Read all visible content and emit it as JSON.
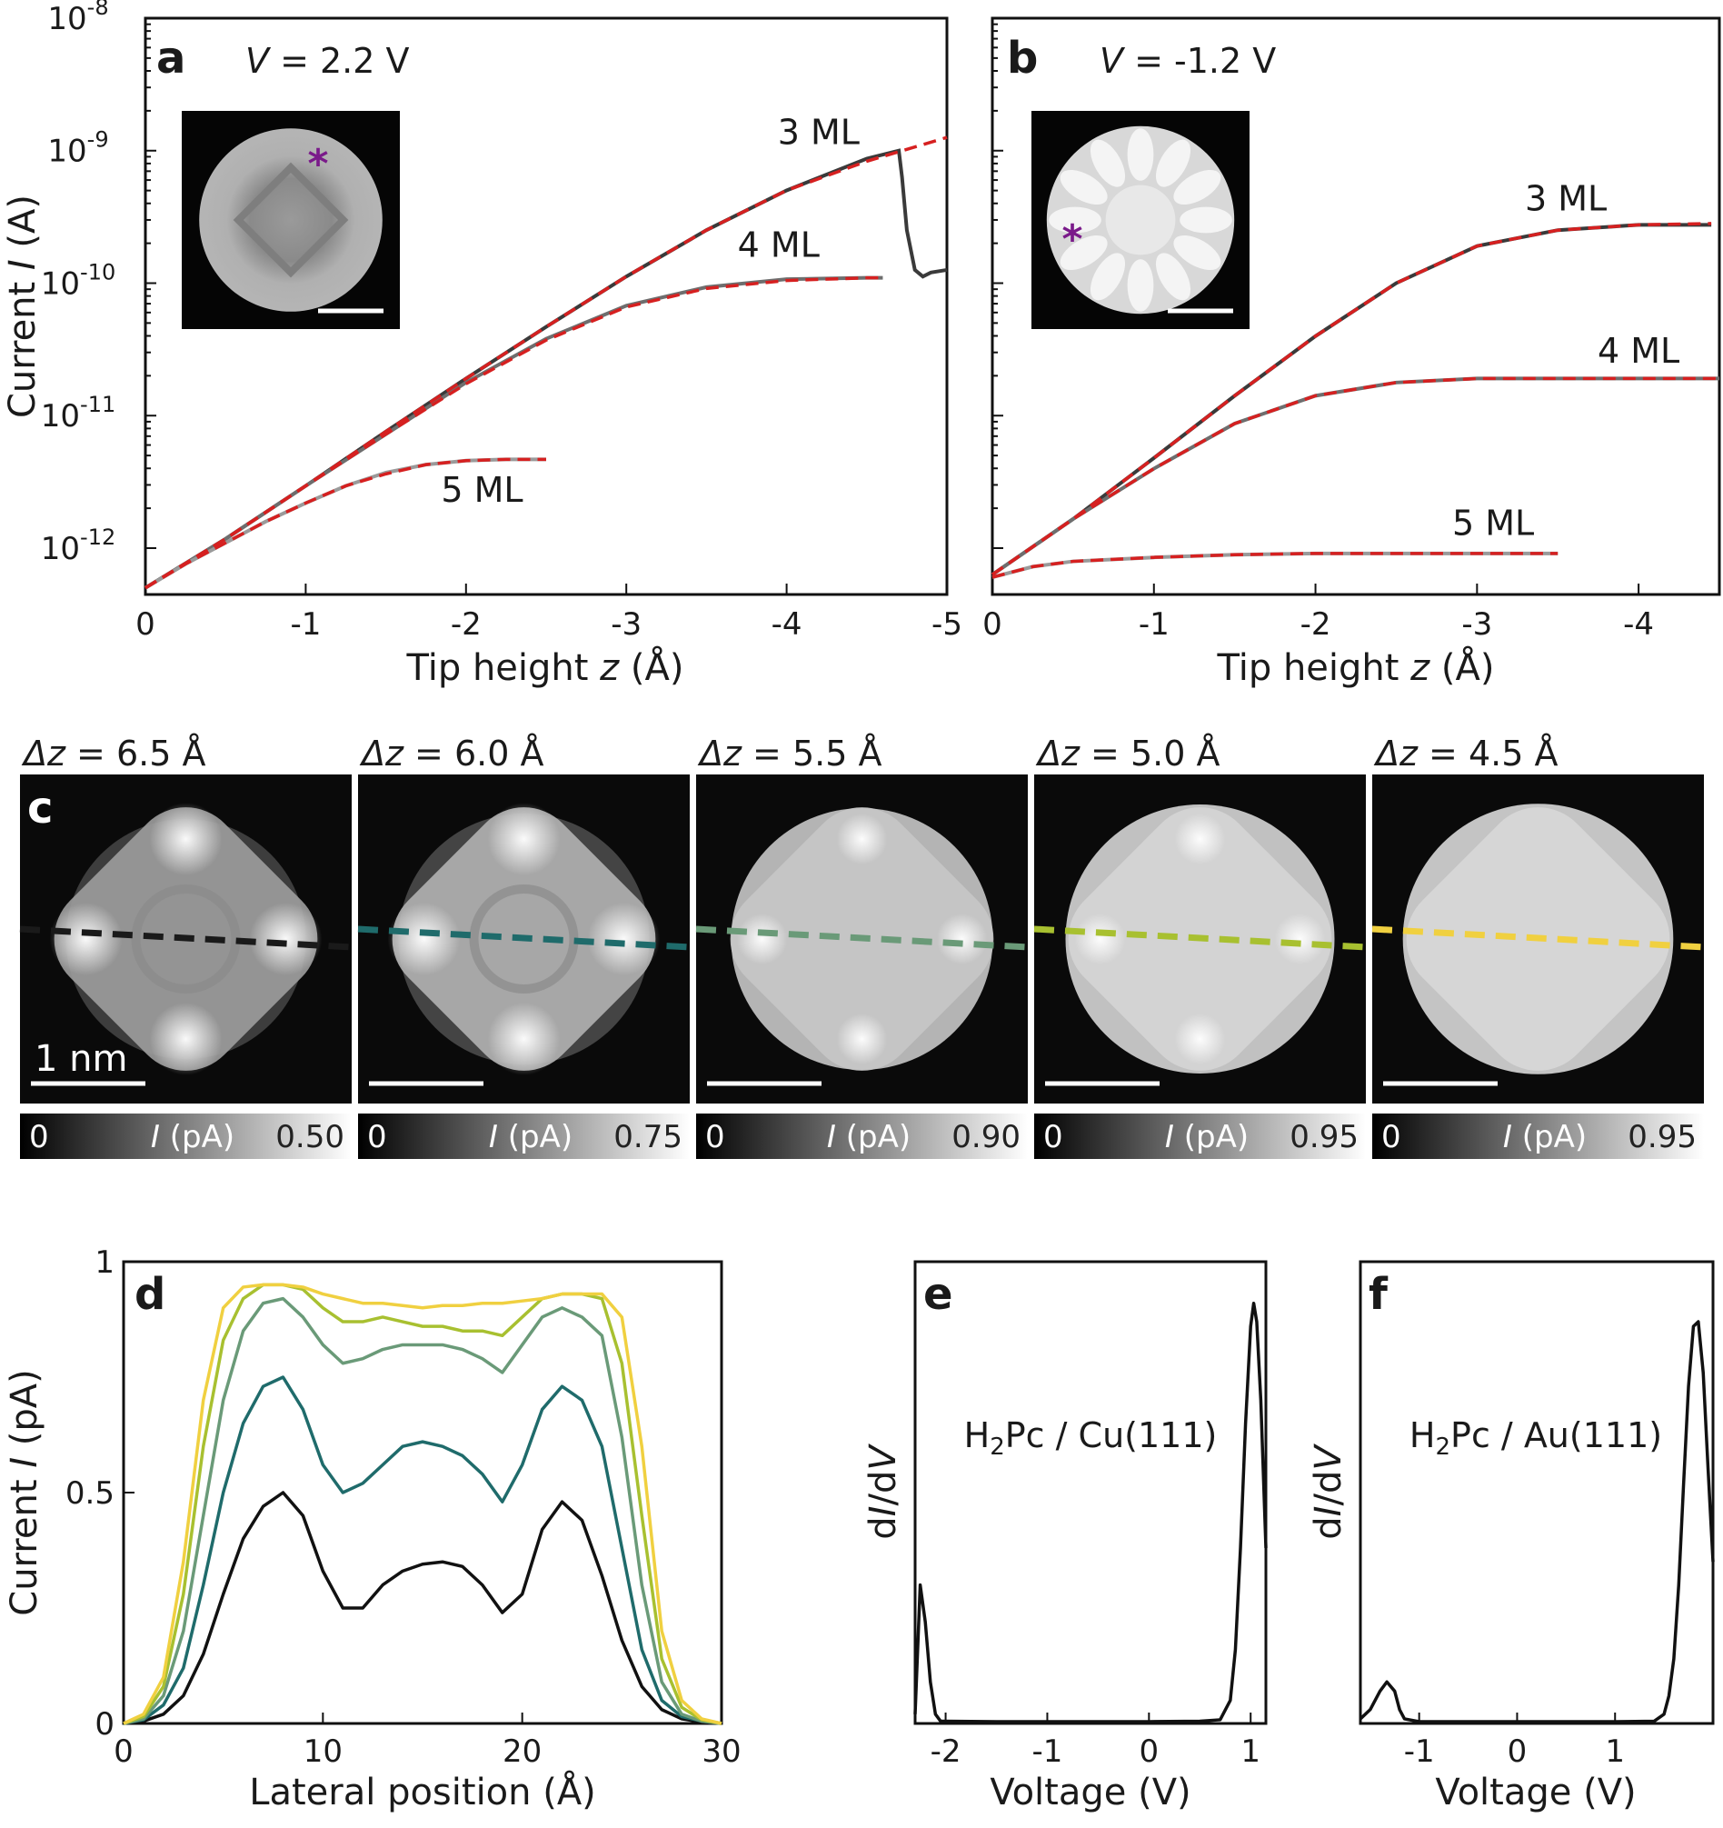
{
  "chart_data": [
    {
      "id": "a",
      "type": "line",
      "panel_label": "a",
      "bias_prefix": "V",
      "bias_value": " = 2.2 V",
      "xlabel_prefix": "Tip height ",
      "xlabel_var": "z",
      "xlabel_suffix": " (Å)",
      "ylabel_prefix": "Current ",
      "ylabel_var": "I",
      "ylabel_suffix": " (A)",
      "yscale": "log",
      "xlim": [
        0,
        -5
      ],
      "ylim_exp": [
        -12.35,
        -8
      ],
      "xticks": [
        0,
        -1,
        -2,
        -3,
        -4,
        -5
      ],
      "xtick_labels": [
        "0",
        "-1",
        "-2",
        "-3",
        "-4",
        "-5"
      ],
      "yticks_exp": [
        -12,
        -11,
        -10,
        -9,
        -8
      ],
      "ytick_base": "10",
      "ytick_exps": [
        "-12",
        "-11",
        "-10",
        "-9",
        "-8"
      ],
      "series": [
        {
          "name": "3 ML",
          "color": "#3a3a3a",
          "x": [
            0,
            -0.5,
            -1,
            -1.5,
            -2,
            -2.5,
            -3,
            -3.5,
            -4,
            -4.5,
            -4.7,
            -4.72,
            -4.75,
            -4.8,
            -4.85,
            -4.9,
            -5.0
          ],
          "y_exp": [
            -12.3,
            -11.93,
            -11.53,
            -11.12,
            -10.72,
            -10.33,
            -9.95,
            -9.6,
            -9.3,
            -9.06,
            -9.0,
            -9.2,
            -9.6,
            -9.9,
            -9.95,
            -9.92,
            -9.9
          ]
        },
        {
          "name": "4 ML",
          "color": "#6e6e6e",
          "x": [
            0,
            -0.5,
            -1,
            -1.5,
            -2,
            -2.5,
            -3,
            -3.5,
            -4,
            -4.5,
            -4.6
          ],
          "y_exp": [
            -12.3,
            -11.93,
            -11.53,
            -11.14,
            -10.75,
            -10.42,
            -10.17,
            -10.03,
            -9.97,
            -9.96,
            -9.96
          ]
        },
        {
          "name": "5 ML",
          "color": "#9a9a9a",
          "x": [
            0,
            -0.25,
            -0.5,
            -0.75,
            -1,
            -1.25,
            -1.5,
            -1.75,
            -2,
            -2.25,
            -2.5
          ],
          "y_exp": [
            -12.3,
            -12.12,
            -11.96,
            -11.8,
            -11.66,
            -11.53,
            -11.43,
            -11.37,
            -11.34,
            -11.33,
            -11.33
          ]
        }
      ],
      "fits": [
        {
          "color": "#d62020",
          "x": [
            0,
            -0.5,
            -1,
            -1.5,
            -2,
            -2.5,
            -3,
            -3.5,
            -4,
            -4.5,
            -5.0
          ],
          "y_exp": [
            -12.3,
            -11.93,
            -11.53,
            -11.12,
            -10.72,
            -10.33,
            -9.95,
            -9.6,
            -9.3,
            -9.08,
            -8.9
          ]
        },
        {
          "color": "#d62020",
          "x": [
            0,
            -0.5,
            -1,
            -1.5,
            -2,
            -2.5,
            -3,
            -3.5,
            -4,
            -4.5,
            -4.6
          ],
          "y_exp": [
            -12.3,
            -11.93,
            -11.53,
            -11.14,
            -10.76,
            -10.43,
            -10.18,
            -10.04,
            -9.98,
            -9.96,
            -9.96
          ]
        },
        {
          "color": "#d62020",
          "x": [
            0,
            -0.25,
            -0.5,
            -0.75,
            -1,
            -1.25,
            -1.5,
            -1.75,
            -2,
            -2.25,
            -2.5
          ],
          "y_exp": [
            -12.3,
            -12.12,
            -11.96,
            -11.8,
            -11.66,
            -11.53,
            -11.44,
            -11.37,
            -11.34,
            -11.33,
            -11.33
          ]
        }
      ],
      "labels": [
        {
          "text": "3 ML",
          "x": -4.2,
          "y_exp": -8.95
        },
        {
          "text": "4 ML",
          "x": -3.95,
          "y_exp": -9.8
        },
        {
          "text": "5 ML",
          "x": -2.1,
          "y_exp": -11.65
        }
      ],
      "inset": {
        "has_asterisk": true,
        "asterisk_color": "#7a1a8a",
        "pattern": "ring"
      }
    },
    {
      "id": "b",
      "type": "line",
      "panel_label": "b",
      "bias_prefix": "V",
      "bias_value": " = -1.2 V",
      "xlabel_prefix": "Tip height ",
      "xlabel_var": "z",
      "xlabel_suffix": " (Å)",
      "yscale": "log",
      "xlim": [
        0,
        -4.5
      ],
      "ylim_exp": [
        -12.35,
        -8
      ],
      "xticks": [
        0,
        -1,
        -2,
        -3,
        -4
      ],
      "xtick_labels": [
        "0",
        "-1",
        "-2",
        "-3",
        "-4"
      ],
      "yticks_exp": [
        -12,
        -11,
        -10,
        -9
      ],
      "series": [
        {
          "name": "3 ML",
          "color": "#3a3a3a",
          "x": [
            0,
            -0.5,
            -1,
            -1.5,
            -2,
            -2.5,
            -3,
            -3.5,
            -4,
            -4.45
          ],
          "y_exp": [
            -12.2,
            -11.78,
            -11.32,
            -10.85,
            -10.4,
            -10.0,
            -9.72,
            -9.6,
            -9.56,
            -9.56
          ]
        },
        {
          "name": "4 ML",
          "color": "#6e6e6e",
          "x": [
            0,
            -0.5,
            -1,
            -1.5,
            -2,
            -2.5,
            -3,
            -3.5,
            -4,
            -4.5
          ],
          "y_exp": [
            -12.2,
            -11.78,
            -11.4,
            -11.06,
            -10.85,
            -10.75,
            -10.72,
            -10.72,
            -10.72,
            -10.72
          ]
        },
        {
          "name": "5 ML",
          "color": "#9a9a9a",
          "x": [
            0,
            -0.25,
            -0.5,
            -1,
            -1.5,
            -2,
            -2.5,
            -3,
            -3.5
          ],
          "y_exp": [
            -12.22,
            -12.14,
            -12.1,
            -12.07,
            -12.05,
            -12.04,
            -12.04,
            -12.04,
            -12.04
          ]
        }
      ],
      "fits": [
        {
          "color": "#d62020",
          "x": [
            0,
            -0.5,
            -1,
            -1.5,
            -2,
            -2.5,
            -3,
            -3.5,
            -4,
            -4.45
          ],
          "y_exp": [
            -12.2,
            -11.78,
            -11.32,
            -10.85,
            -10.4,
            -10.0,
            -9.72,
            -9.6,
            -9.56,
            -9.55
          ]
        },
        {
          "color": "#d62020",
          "x": [
            0,
            -0.5,
            -1,
            -1.5,
            -2,
            -2.5,
            -3,
            -3.5,
            -4,
            -4.5
          ],
          "y_exp": [
            -12.2,
            -11.78,
            -11.4,
            -11.06,
            -10.85,
            -10.75,
            -10.72,
            -10.72,
            -10.72,
            -10.72
          ]
        },
        {
          "color": "#d62020",
          "x": [
            0,
            -0.25,
            -0.5,
            -1,
            -1.5,
            -2,
            -2.5,
            -3,
            -3.5
          ],
          "y_exp": [
            -12.22,
            -12.14,
            -12.1,
            -12.07,
            -12.05,
            -12.04,
            -12.04,
            -12.04,
            -12.04
          ]
        }
      ],
      "labels": [
        {
          "text": "3 ML",
          "x": -3.55,
          "y_exp": -9.45
        },
        {
          "text": "4 ML",
          "x": -4.0,
          "y_exp": -10.6
        },
        {
          "text": "5 ML",
          "x": -3.1,
          "y_exp": -11.9
        }
      ],
      "inset": {
        "has_asterisk": true,
        "asterisk_color": "#7a1a8a",
        "pattern": "petals"
      }
    },
    {
      "id": "c",
      "type": "heatmap",
      "panel_label": "c",
      "scale_bar_label": "1 nm",
      "cbar_var": "I",
      "cbar_unit": " (pA)",
      "cbar_min": "0",
      "dz_prefix": "Δz",
      "frames": [
        {
          "dz": " = 6.5 Å",
          "cbar_max": "0.50",
          "line_color": "#1a1a1a",
          "pattern": "lobes",
          "brightness": 0.55
        },
        {
          "dz": " = 6.0 Å",
          "cbar_max": "0.75",
          "line_color": "#1f6b6b",
          "pattern": "lobes",
          "brightness": 0.7
        },
        {
          "dz": " = 5.5 Å",
          "cbar_max": "0.90",
          "line_color": "#6a9a78",
          "pattern": "mixed",
          "brightness": 0.85
        },
        {
          "dz": " = 5.0 Å",
          "cbar_max": "0.95",
          "line_color": "#a8c030",
          "pattern": "petals",
          "brightness": 0.95
        },
        {
          "dz": " = 4.5 Å",
          "cbar_max": "0.95",
          "line_color": "#f0d040",
          "pattern": "disc",
          "brightness": 0.97
        }
      ]
    },
    {
      "id": "d",
      "type": "line",
      "panel_label": "d",
      "xlabel": "Lateral position (Å)",
      "ylabel_prefix": "Current ",
      "ylabel_var": "I",
      "ylabel_suffix": " (pA)",
      "xlim": [
        0,
        30
      ],
      "ylim": [
        0,
        1
      ],
      "xticks": [
        0,
        10,
        20,
        30
      ],
      "xtick_labels": [
        "0",
        "10",
        "20",
        "30"
      ],
      "yticks": [
        0,
        0.5,
        1
      ],
      "ytick_labels": [
        "0",
        "0.5",
        "1"
      ],
      "x": [
        0,
        1,
        2,
        3,
        4,
        5,
        6,
        7,
        8,
        9,
        10,
        11,
        12,
        13,
        14,
        15,
        16,
        17,
        18,
        19,
        20,
        21,
        22,
        23,
        24,
        25,
        26,
        27,
        28,
        29,
        30
      ],
      "series": [
        {
          "name": "6.5",
          "color": "#111111",
          "values": [
            0,
            0.005,
            0.02,
            0.06,
            0.15,
            0.28,
            0.4,
            0.47,
            0.5,
            0.45,
            0.33,
            0.25,
            0.25,
            0.3,
            0.33,
            0.345,
            0.35,
            0.34,
            0.3,
            0.24,
            0.28,
            0.42,
            0.48,
            0.44,
            0.32,
            0.18,
            0.08,
            0.03,
            0.01,
            0.003,
            0
          ]
        },
        {
          "name": "6.0",
          "color": "#1f6b6b",
          "values": [
            0,
            0.008,
            0.04,
            0.12,
            0.3,
            0.5,
            0.65,
            0.73,
            0.75,
            0.68,
            0.56,
            0.5,
            0.52,
            0.56,
            0.6,
            0.61,
            0.6,
            0.58,
            0.54,
            0.48,
            0.56,
            0.68,
            0.73,
            0.7,
            0.6,
            0.38,
            0.16,
            0.05,
            0.015,
            0.005,
            0
          ]
        },
        {
          "name": "5.5",
          "color": "#6a9a78",
          "values": [
            0,
            0.01,
            0.06,
            0.2,
            0.45,
            0.7,
            0.85,
            0.91,
            0.92,
            0.88,
            0.82,
            0.78,
            0.79,
            0.81,
            0.82,
            0.82,
            0.82,
            0.81,
            0.79,
            0.76,
            0.82,
            0.88,
            0.9,
            0.88,
            0.84,
            0.62,
            0.3,
            0.09,
            0.02,
            0.005,
            0
          ]
        },
        {
          "name": "5.0",
          "color": "#a8c030",
          "values": [
            0,
            0.015,
            0.08,
            0.28,
            0.6,
            0.83,
            0.92,
            0.95,
            0.95,
            0.94,
            0.9,
            0.87,
            0.87,
            0.88,
            0.87,
            0.86,
            0.86,
            0.85,
            0.85,
            0.84,
            0.88,
            0.92,
            0.93,
            0.93,
            0.92,
            0.78,
            0.45,
            0.14,
            0.035,
            0.008,
            0
          ]
        },
        {
          "name": "4.5",
          "color": "#f0d040",
          "values": [
            0,
            0.02,
            0.1,
            0.35,
            0.7,
            0.9,
            0.945,
            0.95,
            0.95,
            0.945,
            0.93,
            0.92,
            0.91,
            0.91,
            0.905,
            0.9,
            0.905,
            0.905,
            0.91,
            0.91,
            0.915,
            0.92,
            0.93,
            0.93,
            0.93,
            0.88,
            0.6,
            0.2,
            0.05,
            0.01,
            0
          ]
        }
      ]
    },
    {
      "id": "e",
      "type": "line",
      "panel_label": "e",
      "xlabel": "Voltage (V)",
      "ylabel_prefix": "d",
      "ylabel_var1": "I",
      "ylabel_mid": "/d",
      "ylabel_var2": "V",
      "annotation_pre": "H",
      "annotation_sub": "2",
      "annotation_post": "Pc / Cu(111)",
      "xlim": [
        -2.3,
        1.15
      ],
      "ylim": [
        0,
        1
      ],
      "xticks": [
        -2,
        -1,
        0,
        1
      ],
      "xtick_labels": [
        "-2",
        "-1",
        "0",
        "1"
      ],
      "x": [
        -2.3,
        -2.25,
        -2.2,
        -2.15,
        -2.1,
        -2.05,
        -2.0,
        -1.5,
        -1.0,
        -0.5,
        0,
        0.5,
        0.7,
        0.8,
        0.85,
        0.9,
        0.95,
        1.0,
        1.03,
        1.06,
        1.1,
        1.15
      ],
      "series": [
        {
          "name": "",
          "color": "#111111",
          "values": [
            0.02,
            0.3,
            0.22,
            0.09,
            0.02,
            0.005,
            0.005,
            0.004,
            0.004,
            0.004,
            0.004,
            0.005,
            0.008,
            0.05,
            0.16,
            0.38,
            0.65,
            0.86,
            0.91,
            0.87,
            0.7,
            0.38
          ]
        }
      ]
    },
    {
      "id": "f",
      "type": "line",
      "panel_label": "f",
      "xlabel": "Voltage (V)",
      "ylabel_prefix": "d",
      "ylabel_var1": "I",
      "ylabel_mid": "/d",
      "ylabel_var2": "V",
      "annotation_pre": "H",
      "annotation_sub": "2",
      "annotation_post": "Pc / Au(111)",
      "xlim": [
        -1.6,
        2.0
      ],
      "ylim": [
        0,
        1
      ],
      "xticks": [
        -1,
        0,
        1
      ],
      "xtick_labels": [
        "-1",
        "0",
        "1"
      ],
      "x": [
        -1.6,
        -1.5,
        -1.4,
        -1.33,
        -1.25,
        -1.2,
        -1.15,
        -1.0,
        -0.5,
        0,
        0.5,
        1.0,
        1.4,
        1.5,
        1.55,
        1.6,
        1.65,
        1.7,
        1.75,
        1.8,
        1.85,
        1.9,
        1.95,
        2.0
      ],
      "series": [
        {
          "name": "",
          "color": "#111111",
          "values": [
            0.01,
            0.03,
            0.07,
            0.09,
            0.07,
            0.03,
            0.01,
            0.004,
            0.004,
            0.004,
            0.004,
            0.004,
            0.005,
            0.02,
            0.06,
            0.14,
            0.3,
            0.52,
            0.73,
            0.86,
            0.87,
            0.76,
            0.55,
            0.35
          ]
        }
      ]
    }
  ]
}
